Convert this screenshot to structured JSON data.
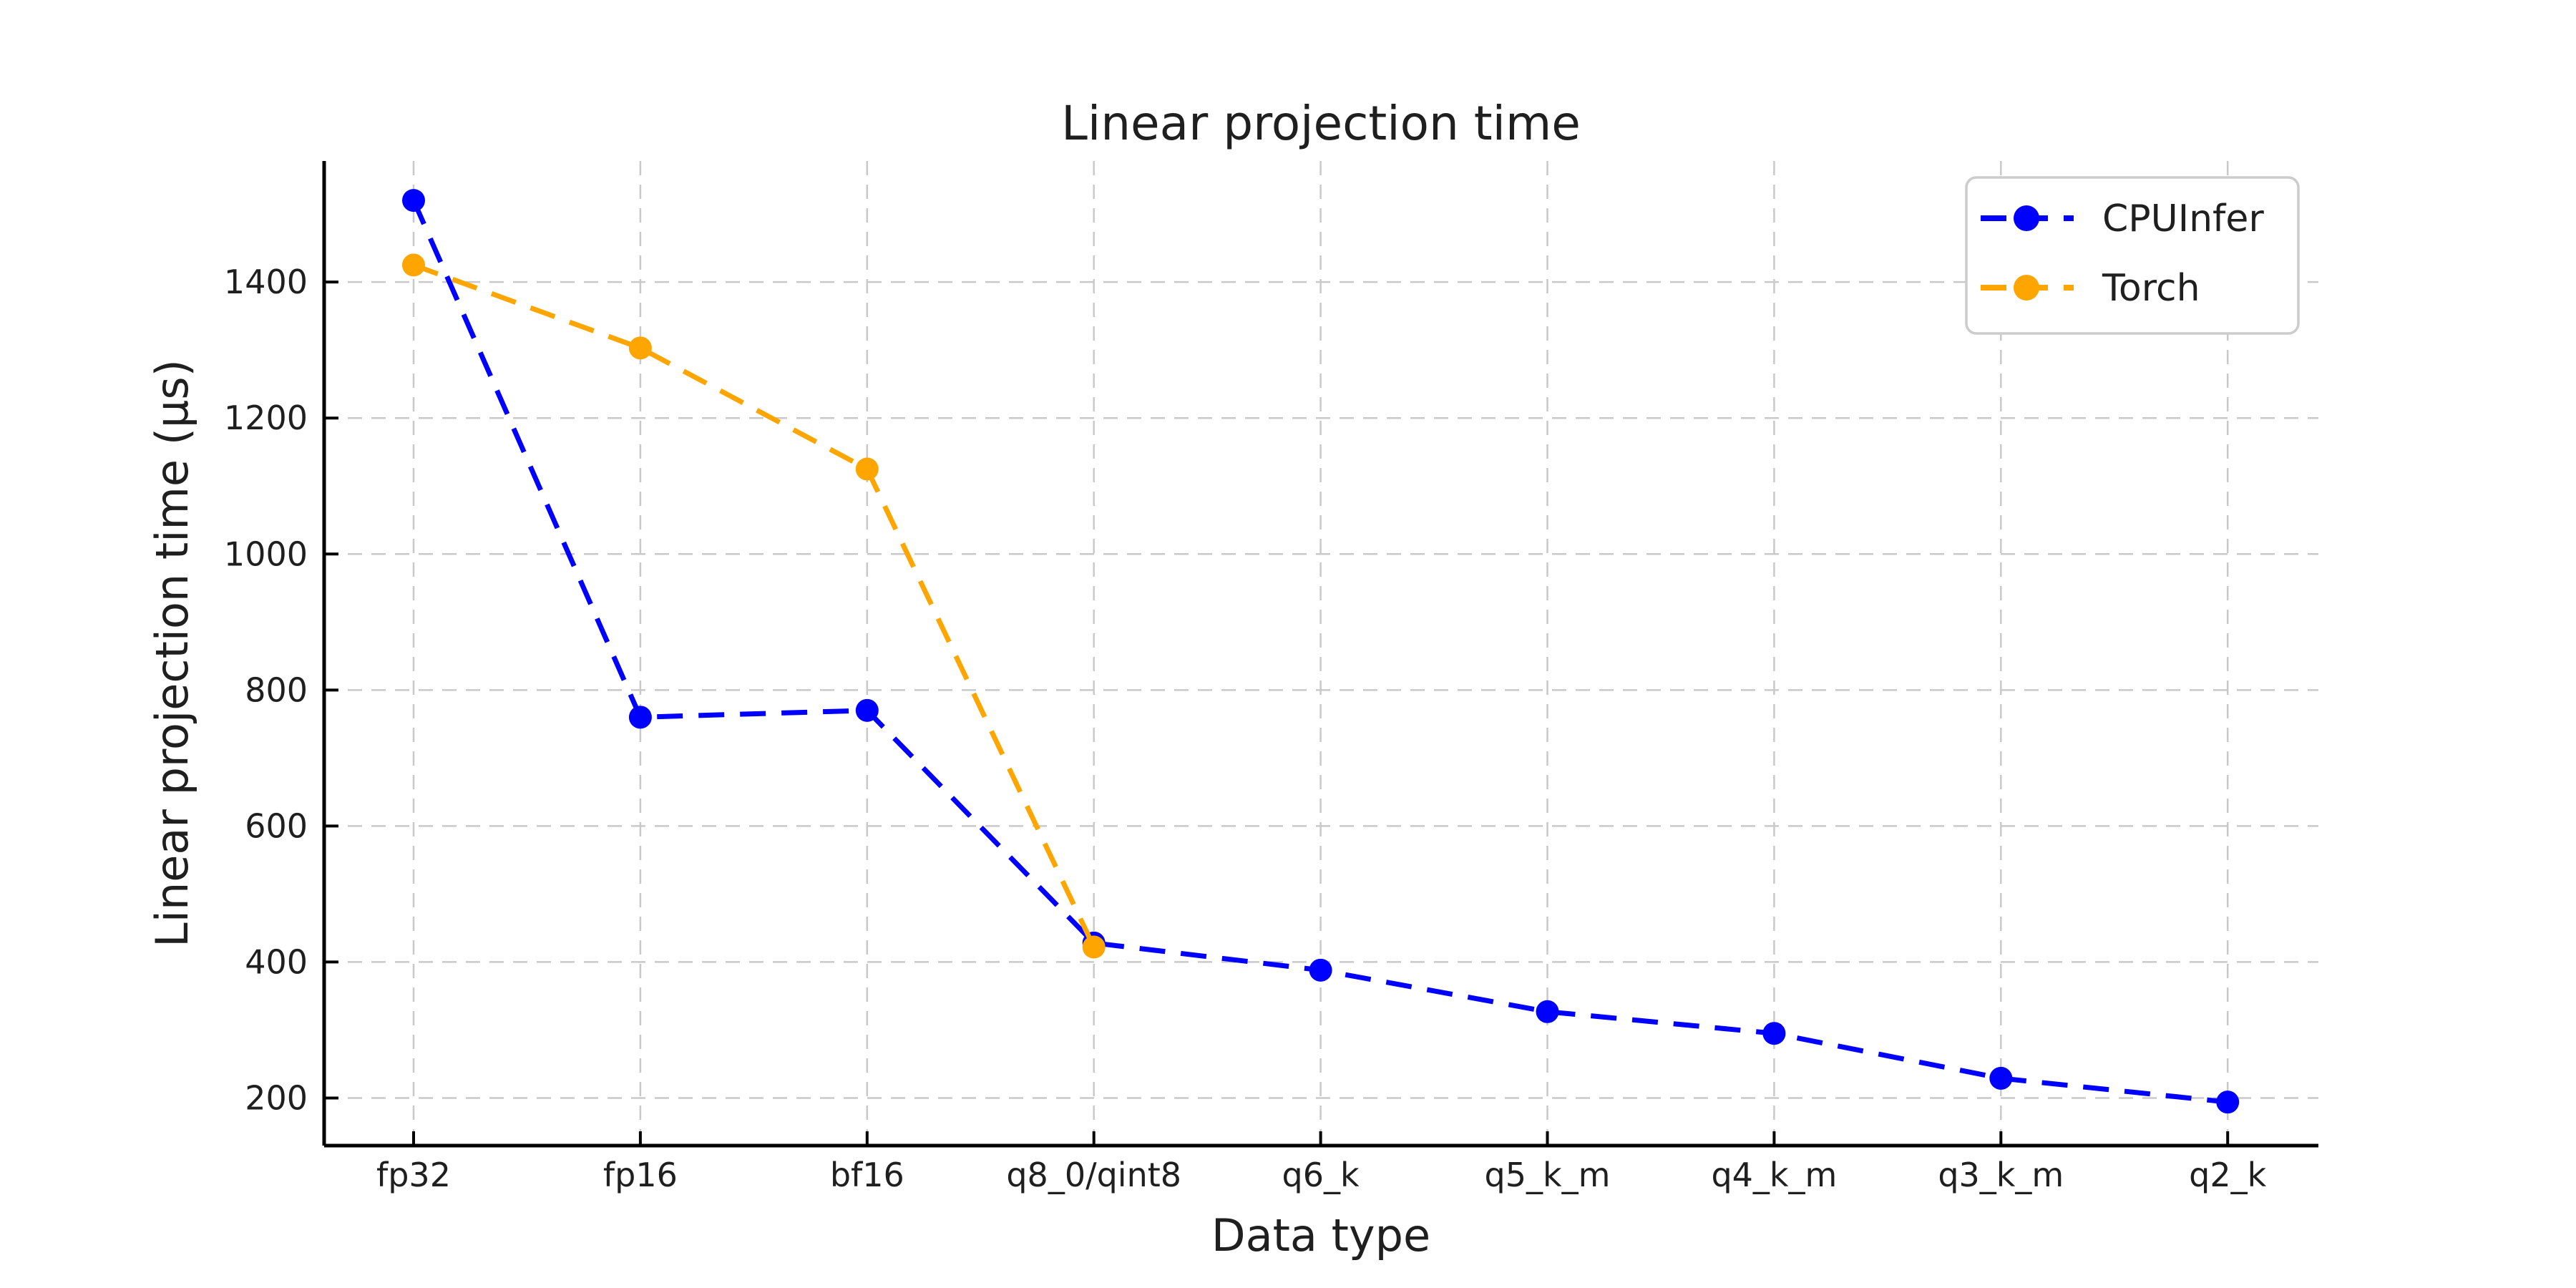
{
  "chart_data": {
    "type": "line",
    "title": "Linear projection time",
    "xlabel": "Data type",
    "ylabel": "Linear projection time (µs)",
    "categories": [
      "fp32",
      "fp16",
      "bf16",
      "q8_0/qint8",
      "q6_k",
      "q5_k_m",
      "q4_k_m",
      "q3_k_m",
      "q2_k"
    ],
    "series": [
      {
        "name": "CPUInfer",
        "color": "#0000ff",
        "values": [
          1520,
          760,
          770,
          428,
          388,
          327,
          295,
          229,
          194
        ]
      },
      {
        "name": "Torch",
        "color": "#ffa500",
        "values": [
          1425,
          1303,
          1125,
          422,
          null,
          null,
          null,
          null,
          null
        ]
      }
    ],
    "yticks": [
      200,
      400,
      600,
      800,
      1000,
      1200,
      1400
    ],
    "ylim": [
      130,
      1578
    ],
    "grid": true,
    "grid_color": "#c9c9c9",
    "spine_color": "#000000",
    "text_color": "#1f1f1f",
    "line_style": "dashed",
    "marker": "circle",
    "legend_position": "upper right"
  }
}
